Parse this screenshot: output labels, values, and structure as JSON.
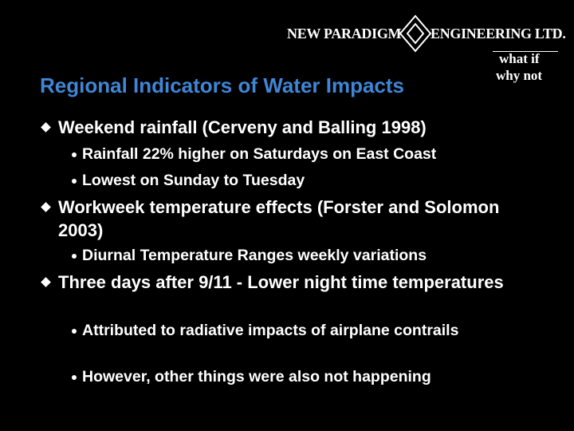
{
  "header": {
    "company_left": "NEW PARADIGM",
    "company_right": "ENGINEERING LTD.",
    "tagline": [
      "what if",
      "why not"
    ]
  },
  "title": "Regional Indicators of Water Impacts",
  "bullets": [
    {
      "text": "Weekend rainfall  (Cerveny and Balling 1998)",
      "sub": [
        "Rainfall 22% higher on Saturdays on East Coast",
        "Lowest on Sunday to Tuesday"
      ]
    },
    {
      "text": "Workweek temperature effects (Forster and Solomon 2003)",
      "sub": [
        "Diurnal Temperature Ranges weekly variations"
      ]
    },
    {
      "text": "Three days after 9/11 - Lower night time temperatures",
      "sub": [
        "Attributed to radiative impacts of airplane contrails",
        "However, other things were also not happening"
      ]
    }
  ]
}
